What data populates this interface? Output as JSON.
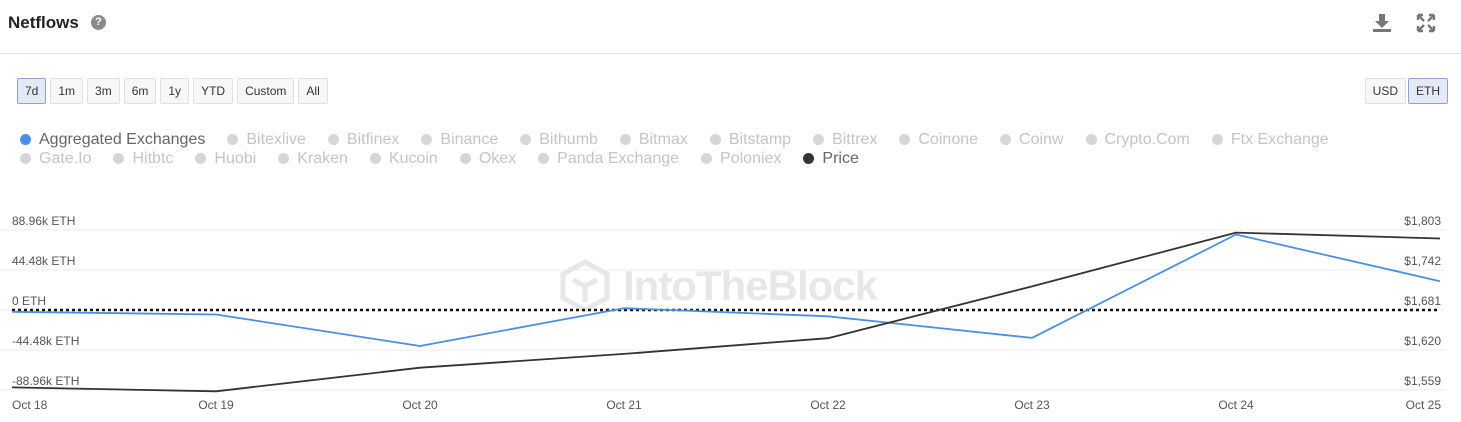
{
  "header": {
    "title": "Netflows",
    "help_icon": "question-circle-icon",
    "download_icon": "download-icon",
    "expand_icon": "expand-icon"
  },
  "range_buttons": [
    {
      "label": "7d",
      "active": true
    },
    {
      "label": "1m",
      "active": false
    },
    {
      "label": "3m",
      "active": false
    },
    {
      "label": "6m",
      "active": false
    },
    {
      "label": "1y",
      "active": false
    },
    {
      "label": "YTD",
      "active": false
    },
    {
      "label": "Custom",
      "active": false
    },
    {
      "label": "All",
      "active": false
    }
  ],
  "currency_buttons": [
    {
      "label": "USD",
      "active": false
    },
    {
      "label": "ETH",
      "active": true
    }
  ],
  "legend": [
    {
      "label": "Aggregated Exchanges",
      "color": "#4a90e2",
      "on": true
    },
    {
      "label": "Bitexlive",
      "color": "#d6d6d6",
      "on": false
    },
    {
      "label": "Bitfinex",
      "color": "#d6d6d6",
      "on": false
    },
    {
      "label": "Binance",
      "color": "#d6d6d6",
      "on": false
    },
    {
      "label": "Bithumb",
      "color": "#d6d6d6",
      "on": false
    },
    {
      "label": "Bitmax",
      "color": "#d6d6d6",
      "on": false
    },
    {
      "label": "Bitstamp",
      "color": "#d6d6d6",
      "on": false
    },
    {
      "label": "Bittrex",
      "color": "#d6d6d6",
      "on": false
    },
    {
      "label": "Coinone",
      "color": "#d6d6d6",
      "on": false
    },
    {
      "label": "Coinw",
      "color": "#d6d6d6",
      "on": false
    },
    {
      "label": "Crypto.Com",
      "color": "#d6d6d6",
      "on": false
    },
    {
      "label": "Ftx Exchange",
      "color": "#d6d6d6",
      "on": false
    },
    {
      "label": "Gate.Io",
      "color": "#d6d6d6",
      "on": false
    },
    {
      "label": "Hitbtc",
      "color": "#d6d6d6",
      "on": false
    },
    {
      "label": "Huobi",
      "color": "#d6d6d6",
      "on": false
    },
    {
      "label": "Kraken",
      "color": "#d6d6d6",
      "on": false
    },
    {
      "label": "Kucoin",
      "color": "#d6d6d6",
      "on": false
    },
    {
      "label": "Okex",
      "color": "#d6d6d6",
      "on": false
    },
    {
      "label": "Panda Exchange",
      "color": "#d6d6d6",
      "on": false
    },
    {
      "label": "Poloniex",
      "color": "#d6d6d6",
      "on": false
    },
    {
      "label": "Price",
      "color": "#333333",
      "on": true
    }
  ],
  "watermark": "IntoTheBlock",
  "chart_data": {
    "type": "line",
    "x": [
      "Oct 18",
      "Oct 19",
      "Oct 20",
      "Oct 21",
      "Oct 22",
      "Oct 23",
      "Oct 24",
      "Oct 25"
    ],
    "left_axis": {
      "ticks": [
        88960,
        44480,
        0,
        -44480,
        -88960
      ],
      "tick_labels": [
        "88.96k ETH",
        "44.48k ETH",
        "0 ETH",
        "-44.48k ETH",
        "-88.96k ETH"
      ],
      "range": [
        -88960,
        88960
      ]
    },
    "right_axis": {
      "ticks": [
        1803,
        1742,
        1681,
        1620,
        1559
      ],
      "tick_labels": [
        "$1,803",
        "$1,742",
        "$1,681",
        "$1,620",
        "$1,559"
      ],
      "range": [
        1559,
        1803
      ]
    },
    "series": [
      {
        "name": "Aggregated Exchanges",
        "axis": "left",
        "color": "#4a90e2",
        "values": [
          -2000,
          -5000,
          -40000,
          2000,
          -7000,
          -31000,
          84000,
          32000
        ]
      },
      {
        "name": "Price",
        "axis": "right",
        "color": "#333333",
        "values": [
          1563,
          1557,
          1593,
          1614,
          1638,
          1717,
          1799,
          1790
        ]
      }
    ],
    "zero_line": {
      "value": 0,
      "style": "dotted"
    },
    "grid": true,
    "legend_position": "top"
  }
}
